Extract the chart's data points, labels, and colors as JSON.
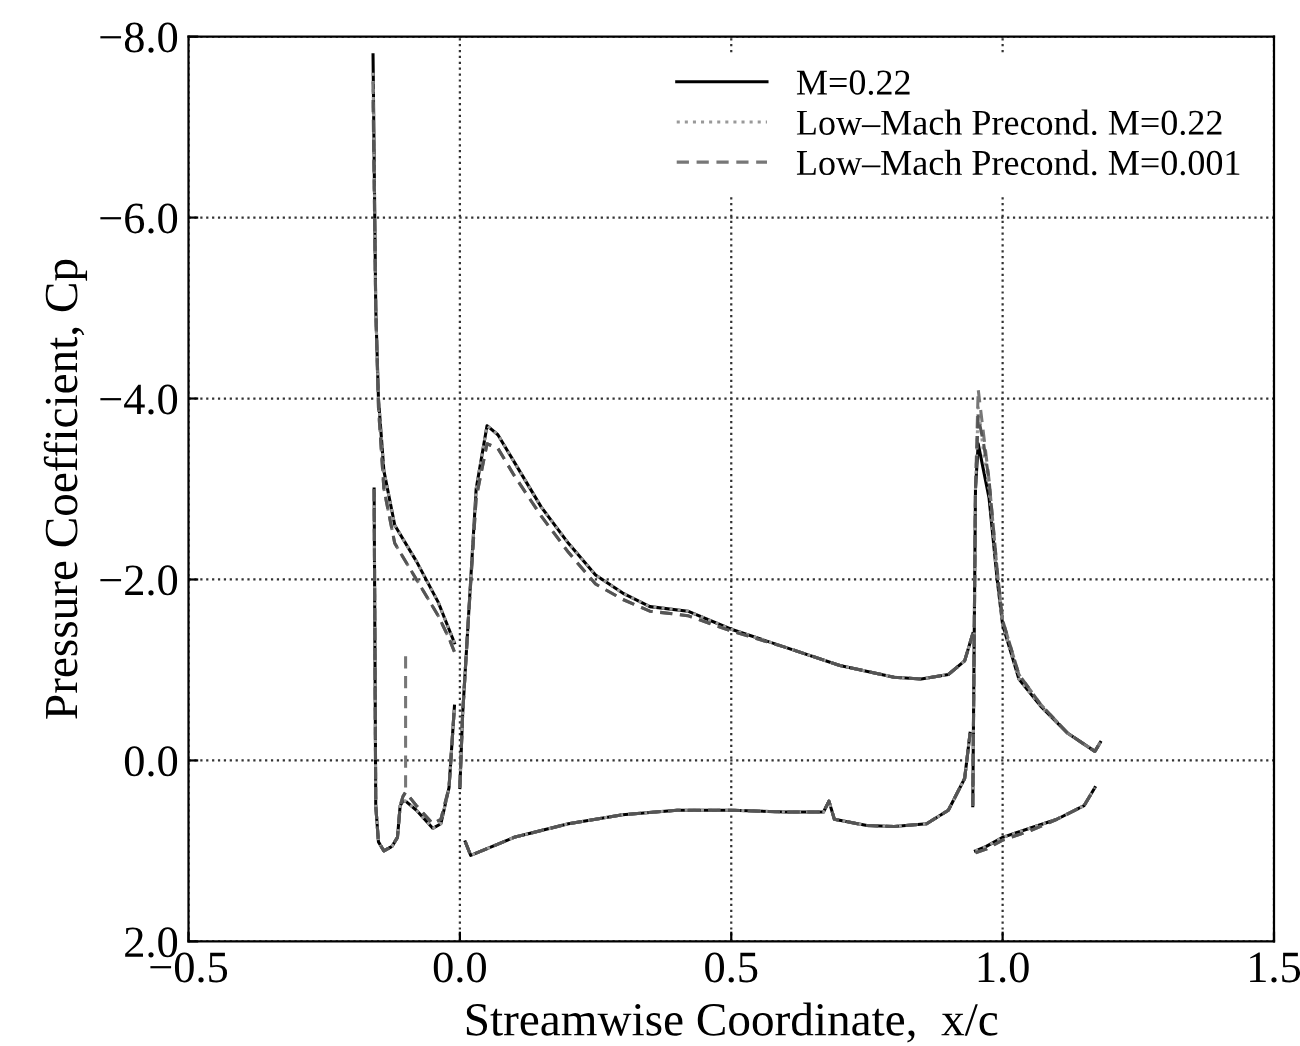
{
  "chart_data": {
    "type": "line",
    "xlabel": "Streamwise Coordinate,  x/c",
    "ylabel": "Pressure Coefficient, Cp",
    "xlim": [
      -0.5,
      1.5
    ],
    "xticks": [
      {
        "value": -0.5,
        "label": "−0.5"
      },
      {
        "value": 0.0,
        "label": "0.0"
      },
      {
        "value": 0.5,
        "label": "0.5"
      },
      {
        "value": 1.0,
        "label": "1.0"
      },
      {
        "value": 1.5,
        "label": "1.5"
      }
    ],
    "ylim": [
      2.0,
      -8.0
    ],
    "yticks": [
      {
        "value": 2.0,
        "label": "2.0"
      },
      {
        "value": 0.0,
        "label": "0.0"
      },
      {
        "value": -2.0,
        "label": "−2.0"
      },
      {
        "value": -4.0,
        "label": "−4.0"
      },
      {
        "value": -6.0,
        "label": "−6.0"
      },
      {
        "value": -8.0,
        "label": "−8.0"
      }
    ],
    "grid": true,
    "legend": "top right",
    "series": [
      {
        "name": "M=0.22",
        "color": "#000000",
        "line_style": "solid",
        "x": [
          -0.16,
          -0.155,
          -0.15,
          -0.14,
          -0.12,
          -0.08,
          -0.04,
          -0.02,
          -0.01
        ],
        "values": [
          -7.8,
          -5.0,
          -4.0,
          -3.2,
          -2.6,
          -2.2,
          -1.75,
          -1.45,
          -1.3
        ]
      },
      {
        "color": "#000000",
        "line_style": "solid",
        "x": [
          -0.158,
          -0.155,
          -0.15,
          -0.14,
          -0.125,
          -0.115,
          -0.11,
          -0.105,
          -0.1,
          -0.08,
          -0.05,
          -0.035,
          -0.02,
          -0.01
        ],
        "values": [
          -3.0,
          0.5,
          0.9,
          1.0,
          0.95,
          0.85,
          0.5,
          0.45,
          0.45,
          0.55,
          0.75,
          0.7,
          0.3,
          -0.6
        ]
      },
      {
        "color": "#000000",
        "line_style": "solid",
        "x": [
          0.0,
          0.005,
          0.015,
          0.03,
          0.05,
          0.07,
          0.1,
          0.15,
          0.2,
          0.25,
          0.3,
          0.35,
          0.42,
          0.5,
          0.6,
          0.7,
          0.8,
          0.85,
          0.9,
          0.93,
          0.945
        ],
        "values": [
          0.3,
          -0.5,
          -1.5,
          -3.0,
          -3.7,
          -3.6,
          -3.3,
          -2.8,
          -2.4,
          -2.05,
          -1.85,
          -1.7,
          -1.65,
          -1.45,
          -1.25,
          -1.05,
          -0.92,
          -0.9,
          -0.95,
          -1.1,
          -1.4
        ]
      },
      {
        "color": "#000000",
        "line_style": "solid",
        "x": [
          0.01,
          0.02,
          0.04,
          0.1,
          0.2,
          0.3,
          0.4,
          0.5,
          0.6,
          0.67,
          0.68,
          0.69,
          0.75,
          0.8,
          0.86,
          0.9,
          0.93,
          0.94
        ],
        "values": [
          0.9,
          1.05,
          1.0,
          0.85,
          0.7,
          0.6,
          0.55,
          0.55,
          0.57,
          0.57,
          0.45,
          0.65,
          0.72,
          0.73,
          0.7,
          0.55,
          0.2,
          -0.3
        ]
      },
      {
        "color": "#000000",
        "line_style": "solid",
        "x": [
          0.945,
          0.95,
          0.955,
          0.965,
          0.975,
          0.99,
          1.0,
          1.03,
          1.07,
          1.12,
          1.17,
          1.18
        ],
        "values": [
          0.5,
          -3.0,
          -3.5,
          -3.2,
          -2.9,
          -2.0,
          -1.5,
          -0.9,
          -0.6,
          -0.3,
          -0.1,
          -0.2
        ]
      },
      {
        "color": "#000000",
        "line_style": "solid",
        "x": [
          0.95,
          0.97,
          1.0,
          1.05,
          1.1,
          1.15,
          1.17
        ],
        "values": [
          1.0,
          0.95,
          0.85,
          0.75,
          0.65,
          0.5,
          0.3
        ]
      },
      {
        "name": "Low–Mach Precond. M=0.22",
        "color": "#999999",
        "line_style": "dotted",
        "x": [
          -0.16,
          -0.155,
          -0.15,
          -0.14,
          -0.12,
          -0.08,
          -0.04,
          -0.02,
          -0.01
        ],
        "values": [
          -7.6,
          -5.0,
          -4.0,
          -3.2,
          -2.6,
          -2.2,
          -1.75,
          -1.45,
          -1.3
        ]
      },
      {
        "color": "#999999",
        "line_style": "dotted",
        "x": [
          -0.158,
          -0.155,
          -0.15,
          -0.14,
          -0.125,
          -0.115,
          -0.11,
          -0.105,
          -0.1,
          -0.08,
          -0.05,
          -0.035,
          -0.02,
          -0.01
        ],
        "values": [
          -3.0,
          0.5,
          0.9,
          1.0,
          0.95,
          0.85,
          0.5,
          0.45,
          0.45,
          0.55,
          0.75,
          0.7,
          0.3,
          -0.6
        ]
      },
      {
        "color": "#999999",
        "line_style": "dotted",
        "x": [
          0.0,
          0.005,
          0.015,
          0.03,
          0.05,
          0.07,
          0.1,
          0.15,
          0.2,
          0.25,
          0.3,
          0.35,
          0.42,
          0.5,
          0.6,
          0.7,
          0.8,
          0.85,
          0.9,
          0.93,
          0.945
        ],
        "values": [
          0.3,
          -0.5,
          -1.5,
          -3.0,
          -3.7,
          -3.6,
          -3.3,
          -2.8,
          -2.4,
          -2.05,
          -1.85,
          -1.7,
          -1.65,
          -1.45,
          -1.25,
          -1.05,
          -0.92,
          -0.9,
          -0.95,
          -1.1,
          -1.4
        ]
      },
      {
        "color": "#999999",
        "line_style": "dotted",
        "x": [
          0.01,
          0.02,
          0.04,
          0.1,
          0.2,
          0.3,
          0.4,
          0.5,
          0.6,
          0.67,
          0.68,
          0.69,
          0.75,
          0.8,
          0.86,
          0.9,
          0.93,
          0.94
        ],
        "values": [
          0.9,
          1.05,
          1.0,
          0.85,
          0.7,
          0.6,
          0.55,
          0.55,
          0.57,
          0.57,
          0.45,
          0.65,
          0.72,
          0.73,
          0.7,
          0.55,
          0.2,
          -0.3
        ]
      },
      {
        "color": "#999999",
        "line_style": "dotted",
        "x": [
          0.945,
          0.95,
          0.955,
          0.965,
          0.975,
          0.99,
          1.0,
          1.03,
          1.07,
          1.12,
          1.17,
          1.18
        ],
        "values": [
          0.5,
          -3.0,
          -3.9,
          -3.4,
          -3.0,
          -2.0,
          -1.5,
          -0.9,
          -0.6,
          -0.3,
          -0.1,
          -0.2
        ]
      },
      {
        "color": "#999999",
        "line_style": "dotted",
        "x": [
          0.95,
          0.97,
          1.0,
          1.05,
          1.1,
          1.15,
          1.17
        ],
        "values": [
          1.0,
          0.95,
          0.85,
          0.75,
          0.65,
          0.5,
          0.3
        ]
      },
      {
        "name": "Low–Mach Precond. M=0.001",
        "color": "#777777",
        "line_style": "dashed",
        "x": [
          -0.16,
          -0.155,
          -0.15,
          -0.14,
          -0.12,
          -0.08,
          -0.04,
          -0.02,
          -0.01
        ],
        "values": [
          -7.5,
          -5.0,
          -3.9,
          -3.0,
          -2.4,
          -2.0,
          -1.6,
          -1.35,
          -1.2
        ]
      },
      {
        "color": "#777777",
        "line_style": "dashed",
        "x": [
          -0.158,
          -0.155,
          -0.15,
          -0.14,
          -0.125,
          -0.115,
          -0.11,
          -0.105,
          -0.1,
          -0.08,
          -0.05,
          -0.035,
          -0.02,
          -0.01
        ],
        "values": [
          -3.0,
          0.5,
          0.9,
          1.0,
          0.95,
          0.85,
          0.5,
          0.4,
          0.35,
          0.5,
          0.7,
          0.65,
          0.3,
          -0.6
        ]
      },
      {
        "color": "#777777",
        "line_style": "dashed",
        "x": [
          -0.1,
          -0.1
        ],
        "values": [
          0.3,
          -1.2
        ]
      },
      {
        "color": "#777777",
        "line_style": "dashed",
        "x": [
          0.0,
          0.005,
          0.015,
          0.03,
          0.05,
          0.07,
          0.1,
          0.15,
          0.2,
          0.25,
          0.3,
          0.35,
          0.42,
          0.5,
          0.6,
          0.7,
          0.8,
          0.85,
          0.9,
          0.93,
          0.945
        ],
        "values": [
          0.3,
          -0.5,
          -1.5,
          -2.9,
          -3.5,
          -3.45,
          -3.15,
          -2.7,
          -2.3,
          -1.95,
          -1.78,
          -1.65,
          -1.6,
          -1.43,
          -1.25,
          -1.05,
          -0.92,
          -0.9,
          -0.95,
          -1.1,
          -1.4
        ]
      },
      {
        "color": "#777777",
        "line_style": "dashed",
        "x": [
          0.01,
          0.02,
          0.04,
          0.1,
          0.2,
          0.3,
          0.4,
          0.5,
          0.6,
          0.67,
          0.68,
          0.69,
          0.75,
          0.8,
          0.86,
          0.9,
          0.93,
          0.94
        ],
        "values": [
          0.9,
          1.05,
          1.0,
          0.85,
          0.7,
          0.6,
          0.55,
          0.55,
          0.57,
          0.57,
          0.45,
          0.65,
          0.72,
          0.73,
          0.7,
          0.55,
          0.2,
          -0.3
        ]
      },
      {
        "color": "#777777",
        "line_style": "dashed",
        "x": [
          0.945,
          0.95,
          0.955,
          0.965,
          0.975,
          0.99,
          1.0,
          1.03,
          1.07,
          1.12,
          1.17,
          1.18
        ],
        "values": [
          0.5,
          -3.0,
          -4.1,
          -3.6,
          -3.1,
          -2.1,
          -1.55,
          -0.95,
          -0.62,
          -0.3,
          -0.1,
          -0.2
        ]
      },
      {
        "color": "#777777",
        "line_style": "dashed",
        "x": [
          0.95,
          0.97,
          1.0,
          1.05,
          1.1,
          1.15,
          1.17
        ],
        "values": [
          1.02,
          0.98,
          0.88,
          0.78,
          0.65,
          0.5,
          0.3
        ]
      },
      {
        "color": "#555555",
        "line_style": "dashed",
        "x": [
          -0.16,
          -0.155,
          -0.15,
          -0.14,
          -0.12,
          -0.08,
          -0.04,
          -0.02,
          -0.01
        ],
        "values": [
          -7.3,
          -5.0,
          -3.9,
          -3.0,
          -2.4,
          -2.0,
          -1.6,
          -1.35,
          -1.2
        ]
      },
      {
        "color": "#555555",
        "line_style": "dashed",
        "x": [
          -0.158,
          -0.155,
          -0.15,
          -0.14,
          -0.125,
          -0.115,
          -0.11,
          -0.105,
          -0.1,
          -0.08,
          -0.05,
          -0.035,
          -0.02,
          -0.01
        ],
        "values": [
          -3.0,
          0.5,
          0.9,
          1.0,
          0.95,
          0.85,
          0.5,
          0.4,
          0.35,
          0.5,
          0.7,
          0.65,
          0.3,
          -0.6
        ]
      },
      {
        "color": "#555555",
        "line_style": "dashed",
        "x": [
          0.0,
          0.005,
          0.015,
          0.03,
          0.05,
          0.07,
          0.1,
          0.15,
          0.2,
          0.25,
          0.3,
          0.35,
          0.42,
          0.5,
          0.6,
          0.7,
          0.8,
          0.85,
          0.9,
          0.93,
          0.945
        ],
        "values": [
          0.3,
          -0.5,
          -1.5,
          -2.9,
          -3.5,
          -3.45,
          -3.15,
          -2.7,
          -2.3,
          -1.95,
          -1.78,
          -1.65,
          -1.6,
          -1.43,
          -1.25,
          -1.05,
          -0.92,
          -0.9,
          -0.95,
          -1.1,
          -1.4
        ]
      },
      {
        "color": "#555555",
        "line_style": "dashed",
        "x": [
          0.01,
          0.02,
          0.04,
          0.1,
          0.2,
          0.3,
          0.4,
          0.5,
          0.6,
          0.67,
          0.68,
          0.69,
          0.75,
          0.8,
          0.86,
          0.9,
          0.93,
          0.94
        ],
        "values": [
          0.9,
          1.05,
          1.0,
          0.85,
          0.7,
          0.6,
          0.55,
          0.55,
          0.57,
          0.57,
          0.45,
          0.65,
          0.72,
          0.73,
          0.7,
          0.55,
          0.2,
          -0.3
        ]
      },
      {
        "color": "#555555",
        "line_style": "dashed",
        "x": [
          0.945,
          0.95,
          0.955,
          0.965,
          0.975,
          0.99,
          1.0,
          1.03,
          1.07,
          1.12,
          1.17,
          1.18
        ],
        "values": [
          0.5,
          -3.0,
          -3.8,
          -3.5,
          -3.1,
          -2.1,
          -1.55,
          -0.95,
          -0.62,
          -0.3,
          -0.1,
          -0.2
        ]
      },
      {
        "color": "#555555",
        "line_style": "dashed",
        "x": [
          0.95,
          0.97,
          1.0,
          1.05,
          1.1,
          1.15,
          1.17
        ],
        "values": [
          1.02,
          0.98,
          0.88,
          0.78,
          0.65,
          0.5,
          0.3
        ]
      }
    ]
  }
}
